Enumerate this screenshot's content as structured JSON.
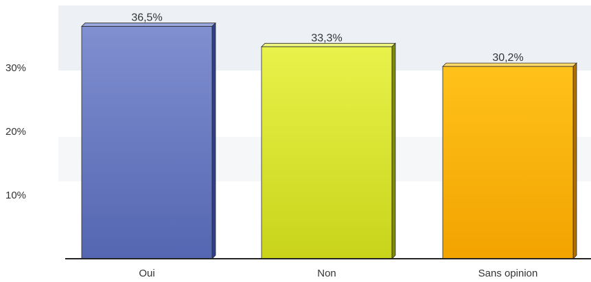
{
  "chart_data": {
    "type": "bar",
    "title": "",
    "xlabel": "",
    "ylabel": "",
    "categories": [
      "Oui",
      "Non",
      "Sans opinion"
    ],
    "values": [
      36.5,
      33.3,
      30.2
    ],
    "value_labels": [
      "36,5%",
      "33,3%",
      "30,2%"
    ],
    "yticks": [
      {
        "value": 10,
        "label": "10%"
      },
      {
        "value": 20,
        "label": "20%"
      },
      {
        "value": 30,
        "label": "30%"
      }
    ],
    "ylim": [
      0,
      40
    ],
    "grid": false,
    "bar_colors": [
      {
        "front_top": "#7f8fcf",
        "front_bottom": "#5566b2",
        "side": "#2f3f8a",
        "top": "#9aa7de"
      },
      {
        "front_top": "#e8f24a",
        "front_bottom": "#c8d41a",
        "side": "#7c8a10",
        "top": "#eef580"
      },
      {
        "front_top": "#ffc21a",
        "front_bottom": "#f2a300",
        "side": "#b06f00",
        "top": "#ffd86a"
      }
    ]
  }
}
